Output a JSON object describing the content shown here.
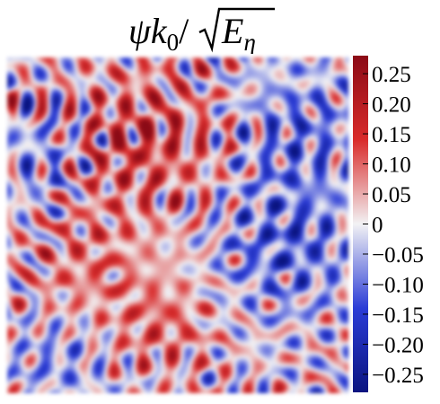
{
  "chart_data": {
    "type": "heatmap",
    "title": "ψk0/√Eη",
    "title_parts": {
      "var": "ψk",
      "sub": "0",
      "slash": "/",
      "E": "E",
      "eta": "η"
    },
    "colorbar": {
      "colormap": "blue-white-red (diverging)",
      "range": [
        -0.28,
        0.28
      ],
      "ticks": [
        0.25,
        0.2,
        0.15,
        0.1,
        0.05,
        0,
        -0.05,
        -0.1,
        -0.15,
        -0.2,
        -0.25
      ],
      "tick_labels": [
        "0.25",
        "0.20",
        "0.15",
        "0.10",
        "0.05",
        "0",
        "−0.05",
        "−0.10",
        "−0.15",
        "−0.20",
        "−0.25"
      ],
      "colors": {
        "max": "#8b0a16",
        "high": "#d92b2b",
        "mid": "#f2f2f4",
        "low": "#2b3cd6",
        "min": "#0a1480"
      }
    },
    "axes": {
      "x_ticks": [],
      "y_ticks": []
    }
  }
}
